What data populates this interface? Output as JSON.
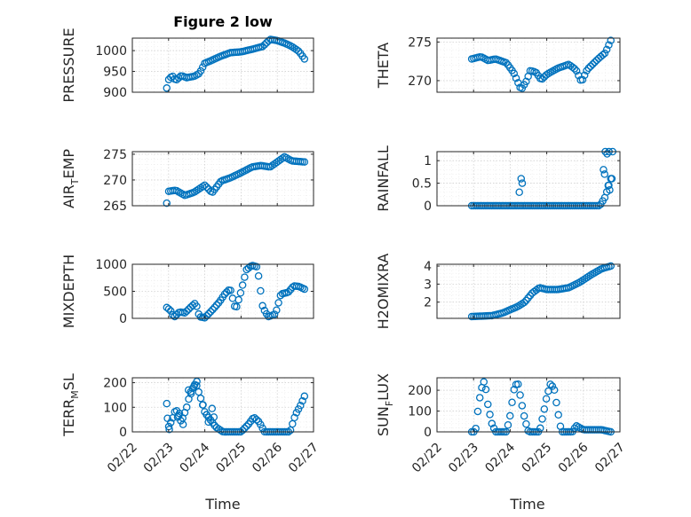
{
  "figure": {
    "title": "Figure 2 low"
  },
  "colors": {
    "marker": "#0072BD",
    "axis": "#262626"
  },
  "chart_data": [
    {
      "type": "scatter",
      "ylabel": "PRESSURE",
      "ylim": [
        900,
        1030
      ],
      "yticks": [
        900,
        950,
        1000
      ],
      "xlim": [
        0,
        5
      ],
      "xticks": [
        0,
        1,
        2,
        3,
        4,
        5
      ],
      "xticklabels": [
        "02/22",
        "02/23",
        "02/24",
        "02/25",
        "02/26",
        "02/27"
      ],
      "anchors": [
        [
          0.95,
          910
        ],
        [
          1.0,
          930
        ],
        [
          1.1,
          940
        ],
        [
          1.2,
          928
        ],
        [
          1.35,
          940
        ],
        [
          1.5,
          935
        ],
        [
          1.7,
          938
        ],
        [
          1.85,
          945
        ],
        [
          2.0,
          970
        ],
        [
          2.15,
          975
        ],
        [
          2.4,
          985
        ],
        [
          2.7,
          995
        ],
        [
          3.0,
          997
        ],
        [
          3.3,
          1003
        ],
        [
          3.6,
          1010
        ],
        [
          3.8,
          1027
        ],
        [
          4.0,
          1024
        ],
        [
          4.2,
          1018
        ],
        [
          4.4,
          1010
        ],
        [
          4.6,
          998
        ],
        [
          4.75,
          980
        ]
      ]
    },
    {
      "type": "scatter",
      "ylabel": "THETA",
      "ylim": [
        268.5,
        275.5
      ],
      "yticks": [
        270,
        275
      ],
      "xlim": [
        0,
        5
      ],
      "xticks": [
        0,
        1,
        2,
        3,
        4,
        5
      ],
      "xticklabels": [
        "02/22",
        "02/23",
        "02/24",
        "02/25",
        "02/26",
        "02/27"
      ],
      "anchors": [
        [
          0.95,
          272.8
        ],
        [
          1.2,
          273.1
        ],
        [
          1.4,
          272.6
        ],
        [
          1.6,
          272.8
        ],
        [
          1.9,
          272.3
        ],
        [
          2.1,
          271.0
        ],
        [
          2.3,
          268.8
        ],
        [
          2.45,
          270.0
        ],
        [
          2.55,
          271.3
        ],
        [
          2.7,
          271.1
        ],
        [
          2.85,
          270.1
        ],
        [
          3.0,
          270.8
        ],
        [
          3.3,
          271.6
        ],
        [
          3.6,
          272.1
        ],
        [
          3.8,
          271.4
        ],
        [
          3.95,
          269.8
        ],
        [
          4.1,
          271.4
        ],
        [
          4.4,
          272.8
        ],
        [
          4.6,
          273.6
        ],
        [
          4.75,
          275.2
        ]
      ]
    },
    {
      "type": "scatter",
      "ylabel": "AIR_TEMP",
      "ylim": [
        265,
        275.5
      ],
      "yticks": [
        265,
        270,
        275
      ],
      "xlim": [
        0,
        5
      ],
      "xticks": [
        0,
        1,
        2,
        3,
        4,
        5
      ],
      "xticklabels": [
        "02/22",
        "02/23",
        "02/24",
        "02/25",
        "02/26",
        "02/27"
      ],
      "anchors": [
        [
          0.95,
          265.5
        ],
        [
          1.0,
          267.8
        ],
        [
          1.2,
          268.0
        ],
        [
          1.45,
          267.0
        ],
        [
          1.7,
          267.6
        ],
        [
          2.0,
          269.0
        ],
        [
          2.2,
          267.5
        ],
        [
          2.45,
          269.8
        ],
        [
          2.7,
          270.4
        ],
        [
          3.0,
          271.4
        ],
        [
          3.3,
          272.5
        ],
        [
          3.55,
          272.8
        ],
        [
          3.8,
          272.5
        ],
        [
          4.0,
          273.5
        ],
        [
          4.2,
          274.5
        ],
        [
          4.4,
          273.7
        ],
        [
          4.75,
          273.5
        ]
      ]
    },
    {
      "type": "scatter",
      "ylabel": "RAINFALL",
      "ylim": [
        0,
        1.2
      ],
      "yticks": [
        0,
        0.5,
        1
      ],
      "xlim": [
        0,
        5
      ],
      "xticks": [
        0,
        1,
        2,
        3,
        4,
        5
      ],
      "xticklabels": [
        "02/22",
        "02/23",
        "02/24",
        "02/25",
        "02/26",
        "02/27"
      ],
      "anchors": [
        [
          0.95,
          0
        ],
        [
          4.45,
          0
        ],
        [
          4.6,
          0.2
        ],
        [
          4.75,
          0.6
        ]
      ],
      "extra_points": [
        [
          2.3,
          0.6
        ],
        [
          2.33,
          0.5
        ],
        [
          2.25,
          0.3
        ],
        [
          4.55,
          0.8
        ],
        [
          4.6,
          1.2
        ],
        [
          4.65,
          1.15
        ],
        [
          4.7,
          1.2
        ],
        [
          4.68,
          0.45
        ],
        [
          4.72,
          0.35
        ],
        [
          4.78,
          0.6
        ],
        [
          4.8,
          1.2
        ],
        [
          4.58,
          0.7
        ]
      ]
    },
    {
      "type": "scatter",
      "ylabel": "MIXDEPTH",
      "ylim": [
        0,
        1000
      ],
      "yticks": [
        0,
        500,
        1000
      ],
      "xlim": [
        0,
        5
      ],
      "xticks": [
        0,
        1,
        2,
        3,
        4,
        5
      ],
      "xticklabels": [
        "02/22",
        "02/23",
        "02/24",
        "02/25",
        "02/26",
        "02/27"
      ],
      "anchors": [
        [
          0.95,
          200
        ],
        [
          1.05,
          150
        ],
        [
          1.15,
          20
        ],
        [
          1.3,
          120
        ],
        [
          1.45,
          100
        ],
        [
          1.6,
          200
        ],
        [
          1.75,
          290
        ],
        [
          1.85,
          30
        ],
        [
          2.0,
          10
        ],
        [
          2.2,
          150
        ],
        [
          2.4,
          300
        ],
        [
          2.55,
          450
        ],
        [
          2.7,
          550
        ],
        [
          2.85,
          150
        ],
        [
          3.0,
          500
        ],
        [
          3.15,
          900
        ],
        [
          3.3,
          980
        ],
        [
          3.45,
          950
        ],
        [
          3.6,
          200
        ],
        [
          3.75,
          30
        ],
        [
          3.95,
          80
        ],
        [
          4.1,
          450
        ],
        [
          4.3,
          480
        ],
        [
          4.45,
          600
        ],
        [
          4.6,
          590
        ],
        [
          4.75,
          540
        ]
      ]
    },
    {
      "type": "scatter",
      "ylabel": "H2OMIXRA",
      "ylim": [
        1.1,
        4.1
      ],
      "yticks": [
        2,
        3,
        4
      ],
      "xlim": [
        0,
        5
      ],
      "xticks": [
        0,
        1,
        2,
        3,
        4,
        5
      ],
      "xticklabels": [
        "02/22",
        "02/23",
        "02/24",
        "02/25",
        "02/26",
        "02/27"
      ],
      "anchors": [
        [
          0.95,
          1.2
        ],
        [
          1.5,
          1.25
        ],
        [
          1.8,
          1.4
        ],
        [
          2.2,
          1.75
        ],
        [
          2.4,
          2.0
        ],
        [
          2.6,
          2.5
        ],
        [
          2.8,
          2.8
        ],
        [
          3.0,
          2.7
        ],
        [
          3.3,
          2.7
        ],
        [
          3.6,
          2.8
        ],
        [
          3.9,
          3.1
        ],
        [
          4.2,
          3.5
        ],
        [
          4.5,
          3.85
        ],
        [
          4.75,
          4.0
        ]
      ]
    },
    {
      "type": "scatter",
      "ylabel": "TERR_MSL",
      "ylim": [
        0,
        220
      ],
      "yticks": [
        0,
        100,
        200
      ],
      "xlim": [
        0,
        5
      ],
      "xticks": [
        0,
        1,
        2,
        3,
        4,
        5
      ],
      "xticklabels": [
        "02/22",
        "02/23",
        "02/24",
        "02/25",
        "02/26",
        "02/27"
      ],
      "anchors": [
        [
          0.95,
          115
        ],
        [
          1.0,
          20
        ],
        [
          1.1,
          50
        ],
        [
          1.2,
          95
        ],
        [
          1.35,
          40
        ],
        [
          1.5,
          100
        ],
        [
          1.6,
          160
        ],
        [
          1.75,
          200
        ],
        [
          1.9,
          130
        ],
        [
          2.0,
          80
        ],
        [
          2.15,
          50
        ],
        [
          2.3,
          20
        ],
        [
          2.5,
          0
        ],
        [
          3.0,
          0
        ],
        [
          3.2,
          30
        ],
        [
          3.35,
          60
        ],
        [
          3.5,
          40
        ],
        [
          3.65,
          0
        ],
        [
          4.35,
          0
        ],
        [
          4.5,
          70
        ],
        [
          4.65,
          110
        ],
        [
          4.75,
          145
        ]
      ],
      "extra_points": [
        [
          0.97,
          55
        ],
        [
          1.02,
          10
        ],
        [
          1.25,
          60
        ],
        [
          1.3,
          75
        ],
        [
          1.4,
          30
        ],
        [
          1.55,
          170
        ],
        [
          1.62,
          155
        ],
        [
          1.7,
          185
        ],
        [
          1.78,
          205
        ],
        [
          1.95,
          110
        ],
        [
          2.05,
          70
        ],
        [
          2.1,
          40
        ],
        [
          2.2,
          95
        ],
        [
          2.25,
          60
        ]
      ]
    },
    {
      "type": "scatter",
      "ylabel": "SUN_FLUX",
      "ylim": [
        0,
        260
      ],
      "yticks": [
        0,
        100,
        200
      ],
      "xlim": [
        0,
        5
      ],
      "xticks": [
        0,
        1,
        2,
        3,
        4,
        5
      ],
      "xticklabels": [
        "02/22",
        "02/23",
        "02/24",
        "02/25",
        "02/26",
        "02/27"
      ],
      "anchors": [
        [
          0.95,
          0
        ],
        [
          1.05,
          0
        ],
        [
          1.1,
          80
        ],
        [
          1.2,
          200
        ],
        [
          1.3,
          250
        ],
        [
          1.4,
          120
        ],
        [
          1.5,
          40
        ],
        [
          1.6,
          0
        ],
        [
          1.9,
          0
        ],
        [
          2.0,
          80
        ],
        [
          2.1,
          200
        ],
        [
          2.2,
          245
        ],
        [
          2.3,
          150
        ],
        [
          2.4,
          60
        ],
        [
          2.5,
          0
        ],
        [
          2.8,
          0
        ],
        [
          2.9,
          80
        ],
        [
          3.0,
          170
        ],
        [
          3.1,
          230
        ],
        [
          3.2,
          210
        ],
        [
          3.3,
          100
        ],
        [
          3.4,
          0
        ],
        [
          3.7,
          0
        ],
        [
          3.8,
          30
        ],
        [
          4.0,
          10
        ],
        [
          4.3,
          10
        ],
        [
          4.5,
          10
        ],
        [
          4.75,
          0
        ]
      ]
    }
  ],
  "panels_meta": {
    "xlabel": "Time"
  }
}
